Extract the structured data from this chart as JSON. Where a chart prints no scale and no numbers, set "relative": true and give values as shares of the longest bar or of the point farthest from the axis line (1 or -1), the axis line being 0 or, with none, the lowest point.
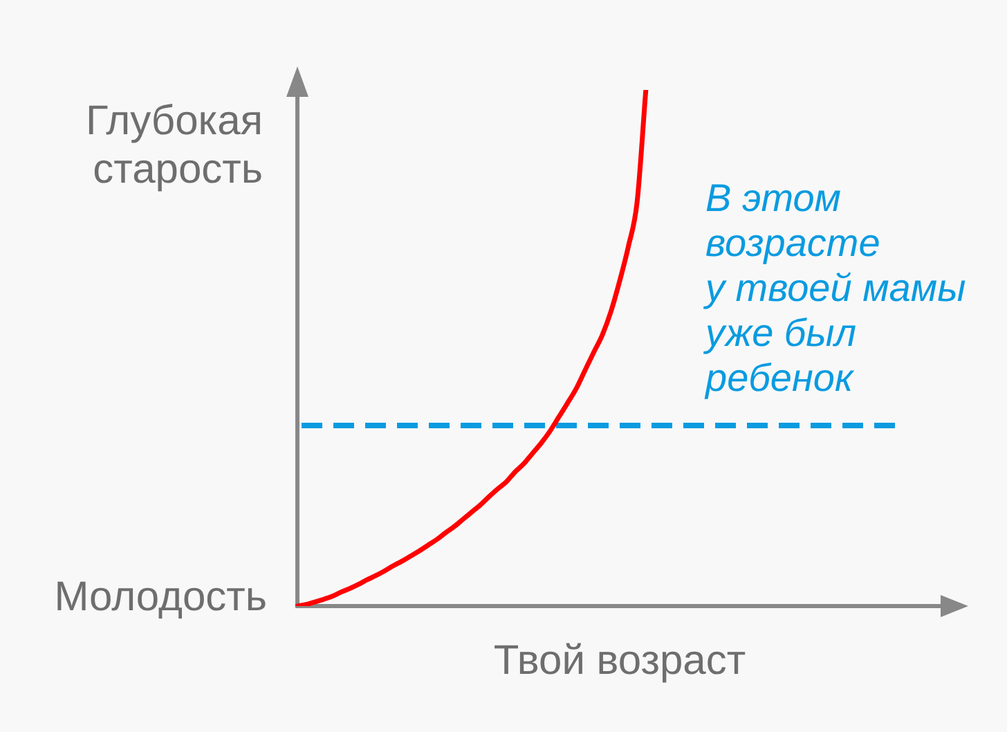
{
  "chart_data": {
    "type": "line",
    "relative": true,
    "xlabel": "Твой возраст",
    "annotations": [
      "Глубокая\nстарость",
      "Молодость"
    ],
    "categories": [
      null,
      null,
      null,
      null,
      null,
      null,
      null,
      null,
      null,
      null,
      null,
      null,
      null,
      null,
      null,
      null,
      null,
      null,
      null,
      null,
      null,
      null,
      null,
      null,
      null,
      null,
      null,
      null,
      null,
      null,
      null,
      null,
      null,
      null,
      null,
      null,
      null,
      null,
      null,
      null,
      null,
      null,
      null,
      null,
      null,
      null,
      null,
      null,
      null,
      null,
      null,
      null,
      null,
      null,
      null,
      null,
      null,
      null,
      null,
      null,
      null,
      null,
      null,
      null,
      null,
      null,
      null,
      null,
      null,
      null,
      null,
      null,
      null,
      null,
      null
    ],
    "series": [
      {
        "color": "#ff0000",
        "values": [
          0,
          0.003,
          0.008,
          0.013,
          0.019,
          0.027,
          0.034,
          0.042,
          0.051,
          0.059,
          0.068,
          0.078,
          0.087,
          0.097,
          0.107,
          0.118,
          0.129,
          0.142,
          0.154,
          0.168,
          0.182,
          0.196,
          0.212,
          0.227,
          0.241,
          0.26,
          0.276,
          0.296,
          0.316,
          0.339,
          0.366,
          0.393,
          0.421,
          0.456,
          0.491,
          0.525,
          0.571,
          0.63,
          0.697,
          0.783,
          1,
          null,
          null,
          null,
          null,
          null,
          null,
          null,
          null,
          null,
          null,
          null,
          null,
          null,
          null,
          null,
          null,
          null,
          null,
          null,
          null,
          null,
          null,
          null,
          null,
          null,
          null,
          null,
          null,
          null,
          null,
          null,
          null,
          null,
          null
        ]
      }
    ],
    "ref_lines": [
      {
        "axis": "y",
        "value": 0.35,
        "label": "В этом\nвозрасте\nу твоей мамы\nуже был\nребенок",
        "color": "#0a9be0",
        "line_style": "dashed"
      }
    ],
    "marker": "none",
    "grid": false,
    "legend": false,
    "tick_labels": false
  }
}
